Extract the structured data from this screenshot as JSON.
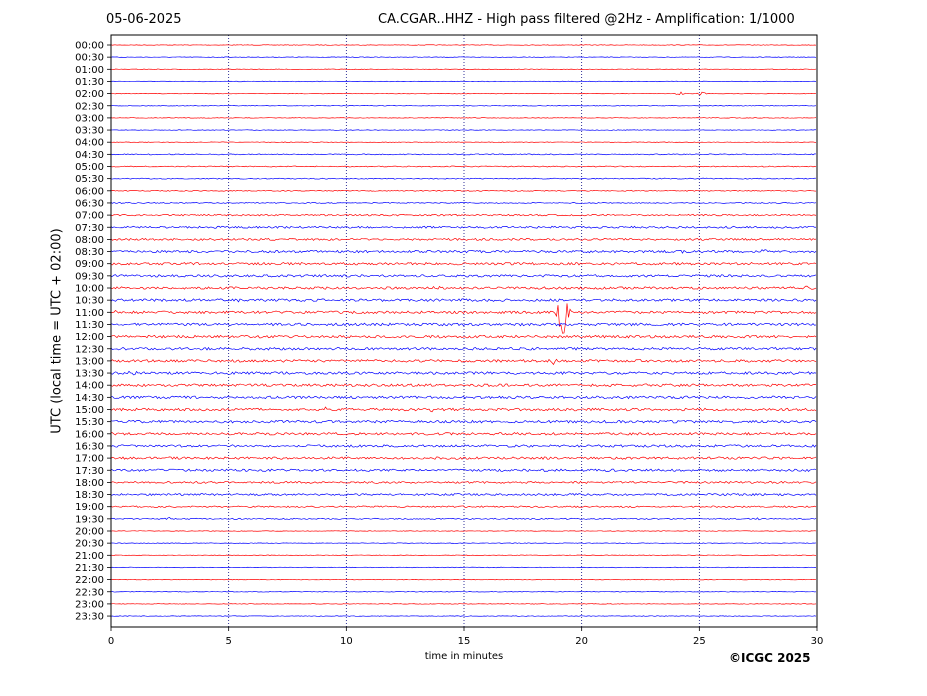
{
  "header": {
    "date": "05-06-2025",
    "title": "CA.CGAR..HHZ - High pass filtered @2Hz - Amplification: 1/1000"
  },
  "footer": {
    "copyright": "©ICGC 2025"
  },
  "colors": {
    "red_trace": "#ff0000",
    "blue_trace": "#0000ff",
    "gridline": "#000080"
  },
  "chart_data": {
    "type": "line",
    "title": "CA.CGAR..HHZ - High pass filtered @2Hz - Amplification: 1/1000",
    "xlabel": "time in minutes",
    "ylabel": "UTC (local time = UTC + 02:00)",
    "xlim": [
      0,
      30
    ],
    "x_ticks": [
      "0",
      "5",
      "10",
      "15",
      "20",
      "25",
      "30"
    ],
    "grid": "vertical dotted at 5-minute intervals",
    "rows": [
      {
        "label": "00:00",
        "color": "red",
        "noise": 0.3
      },
      {
        "label": "00:30",
        "color": "blue",
        "noise": 0.3
      },
      {
        "label": "01:00",
        "color": "red",
        "noise": 0.3
      },
      {
        "label": "01:30",
        "color": "blue",
        "noise": 0.3
      },
      {
        "label": "02:00",
        "color": "red",
        "noise": 0.3,
        "events": [
          {
            "t": 24.2,
            "amp": 2
          },
          {
            "t": 25.1,
            "amp": 2
          }
        ]
      },
      {
        "label": "02:30",
        "color": "blue",
        "noise": 0.3
      },
      {
        "label": "03:00",
        "color": "red",
        "noise": 0.3
      },
      {
        "label": "03:30",
        "color": "blue",
        "noise": 0.3
      },
      {
        "label": "04:00",
        "color": "red",
        "noise": 0.3
      },
      {
        "label": "04:30",
        "color": "blue",
        "noise": 0.5
      },
      {
        "label": "05:00",
        "color": "red",
        "noise": 0.5
      },
      {
        "label": "05:30",
        "color": "blue",
        "noise": 0.5
      },
      {
        "label": "06:00",
        "color": "red",
        "noise": 0.5
      },
      {
        "label": "06:30",
        "color": "blue",
        "noise": 0.5
      },
      {
        "label": "07:00",
        "color": "red",
        "noise": 0.8
      },
      {
        "label": "07:30",
        "color": "blue",
        "noise": 1.0
      },
      {
        "label": "08:00",
        "color": "red",
        "noise": 1.0
      },
      {
        "label": "08:30",
        "color": "blue",
        "noise": 1.2,
        "events": [
          {
            "t": 24.2,
            "amp": 2
          },
          {
            "t": 27.7,
            "amp": 2
          }
        ]
      },
      {
        "label": "09:00",
        "color": "red",
        "noise": 1.2
      },
      {
        "label": "09:30",
        "color": "blue",
        "noise": 1.2
      },
      {
        "label": "10:00",
        "color": "red",
        "noise": 1.2,
        "events": [
          {
            "t": 13.9,
            "amp": 2
          },
          {
            "t": 29.6,
            "amp": 2
          }
        ]
      },
      {
        "label": "10:30",
        "color": "blue",
        "noise": 1.3,
        "events": [
          {
            "t": 5.5,
            "amp": 2
          }
        ]
      },
      {
        "label": "11:00",
        "color": "red",
        "noise": 1.3,
        "events": [
          {
            "t": 0.2,
            "amp": 2
          },
          {
            "t": 19.2,
            "amp": 24
          }
        ]
      },
      {
        "label": "11:30",
        "color": "blue",
        "noise": 1.3
      },
      {
        "label": "12:00",
        "color": "red",
        "noise": 1.3
      },
      {
        "label": "12:30",
        "color": "blue",
        "noise": 1.3
      },
      {
        "label": "13:00",
        "color": "red",
        "noise": 1.3,
        "events": [
          {
            "t": 18.8,
            "amp": 3
          }
        ]
      },
      {
        "label": "13:30",
        "color": "blue",
        "noise": 1.3,
        "events": [
          {
            "t": 0.9,
            "amp": 2
          }
        ]
      },
      {
        "label": "14:00",
        "color": "red",
        "noise": 1.3
      },
      {
        "label": "14:30",
        "color": "blue",
        "noise": 1.3
      },
      {
        "label": "15:00",
        "color": "red",
        "noise": 1.3,
        "events": [
          {
            "t": 9.2,
            "amp": 2
          },
          {
            "t": 13.6,
            "amp": 2
          }
        ]
      },
      {
        "label": "15:30",
        "color": "blue",
        "noise": 1.3
      },
      {
        "label": "16:00",
        "color": "red",
        "noise": 1.2
      },
      {
        "label": "16:30",
        "color": "blue",
        "noise": 1.2
      },
      {
        "label": "17:00",
        "color": "red",
        "noise": 1.2
      },
      {
        "label": "17:30",
        "color": "blue",
        "noise": 1.2
      },
      {
        "label": "18:00",
        "color": "red",
        "noise": 1.0
      },
      {
        "label": "18:30",
        "color": "blue",
        "noise": 1.0
      },
      {
        "label": "19:00",
        "color": "red",
        "noise": 0.8
      },
      {
        "label": "19:30",
        "color": "blue",
        "noise": 0.6,
        "events": [
          {
            "t": 2.4,
            "amp": 1.5
          },
          {
            "t": 27.5,
            "amp": 1.5
          }
        ]
      },
      {
        "label": "20:00",
        "color": "red",
        "noise": 0.3
      },
      {
        "label": "20:30",
        "color": "blue",
        "noise": 0.3
      },
      {
        "label": "21:00",
        "color": "red",
        "noise": 0.3
      },
      {
        "label": "21:30",
        "color": "blue",
        "noise": 0.3
      },
      {
        "label": "22:00",
        "color": "red",
        "noise": 0.3
      },
      {
        "label": "22:30",
        "color": "blue",
        "noise": 0.3
      },
      {
        "label": "23:00",
        "color": "red",
        "noise": 0.3
      },
      {
        "label": "23:30",
        "color": "blue",
        "noise": 0.3
      }
    ]
  }
}
